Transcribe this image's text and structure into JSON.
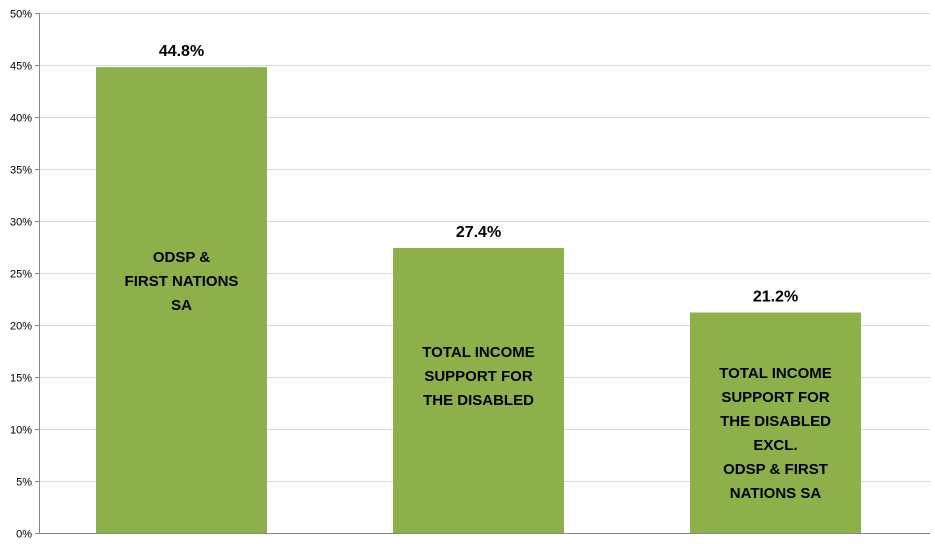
{
  "chart_data": {
    "type": "bar",
    "categories": [
      [
        "ODSP &",
        "FIRST NATIONS",
        "SA"
      ],
      [
        "TOTAL INCOME",
        "SUPPORT FOR",
        "THE DISABLED"
      ],
      [
        "TOTAL INCOME",
        "SUPPORT FOR",
        "THE DISABLED",
        "EXCL.",
        "ODSP & FIRST",
        "NATIONS SA"
      ]
    ],
    "values": [
      44.8,
      27.4,
      21.2
    ],
    "data_labels": [
      "44.8%",
      "27.4%",
      "21.2%"
    ],
    "title": "",
    "xlabel": "",
    "ylabel": "",
    "ylim": [
      0,
      50
    ],
    "yticks": [
      0,
      5,
      10,
      15,
      20,
      25,
      30,
      35,
      40,
      45,
      50
    ],
    "ytick_labels": [
      "0%",
      "5%",
      "10%",
      "15%",
      "20%",
      "25%",
      "30%",
      "35%",
      "40%",
      "45%",
      "50%"
    ],
    "grid": true,
    "legend": "none",
    "bar_label_position": "inside",
    "colors": {
      "bar": "#8db04a",
      "grid": "#d9d9d9",
      "axis": "#868686",
      "text": "#000000"
    }
  }
}
